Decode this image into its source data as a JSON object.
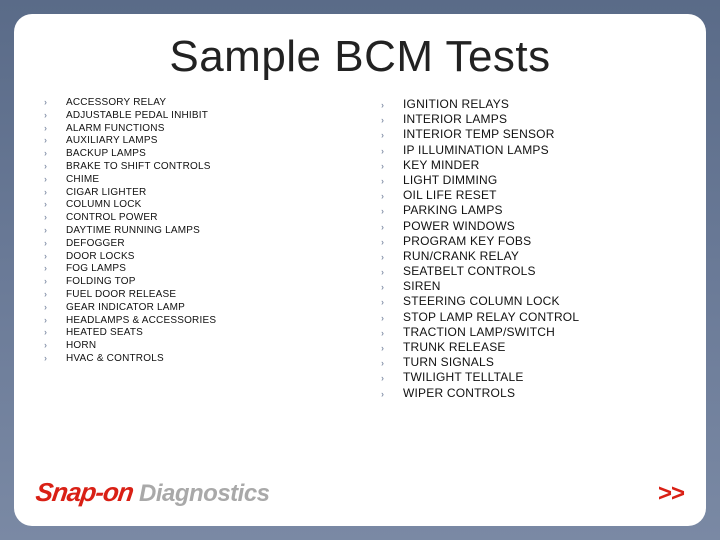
{
  "title": "Sample BCM Tests",
  "columns": {
    "left": [
      "ACCESSORY RELAY",
      "ADJUSTABLE PEDAL INHIBIT",
      "ALARM FUNCTIONS",
      "AUXILIARY LAMPS",
      "BACKUP LAMPS",
      "BRAKE TO SHIFT CONTROLS",
      "CHIME",
      "CIGAR LIGHTER",
      "COLUMN LOCK",
      "CONTROL POWER",
      "DAYTIME RUNNING LAMPS",
      "DEFOGGER",
      "DOOR LOCKS",
      "FOG LAMPS",
      "FOLDING TOP",
      "FUEL DOOR RELEASE",
      "GEAR INDICATOR LAMP",
      "HEADLAMPS & ACCESSORIES",
      "HEATED SEATS",
      "HORN",
      "HVAC & CONTROLS"
    ],
    "right": [
      "IGNITION RELAYS",
      "INTERIOR LAMPS",
      "INTERIOR TEMP SENSOR",
      "IP ILLUMINATION LAMPS",
      "KEY MINDER",
      "LIGHT DIMMING",
      "OIL LIFE RESET",
      "PARKING LAMPS",
      "POWER WINDOWS",
      "PROGRAM KEY FOBS",
      "RUN/CRANK RELAY",
      "SEATBELT CONTROLS",
      "SIREN",
      "STEERING COLUMN LOCK",
      "STOP LAMP RELAY CONTROL",
      "TRACTION LAMP/SWITCH",
      "TRUNK RELEASE",
      "TURN SIGNALS",
      "TWILIGHT TELLTALE",
      "WIPER CONTROLS"
    ]
  },
  "brand": {
    "main": "Snap-on",
    "sub": "Diagnostics"
  },
  "next": ">>",
  "bullet": "›",
  "colors": {
    "accent": "#d92015",
    "chevron": "#8a96ac",
    "brand_sub": "#a9a9a9"
  }
}
